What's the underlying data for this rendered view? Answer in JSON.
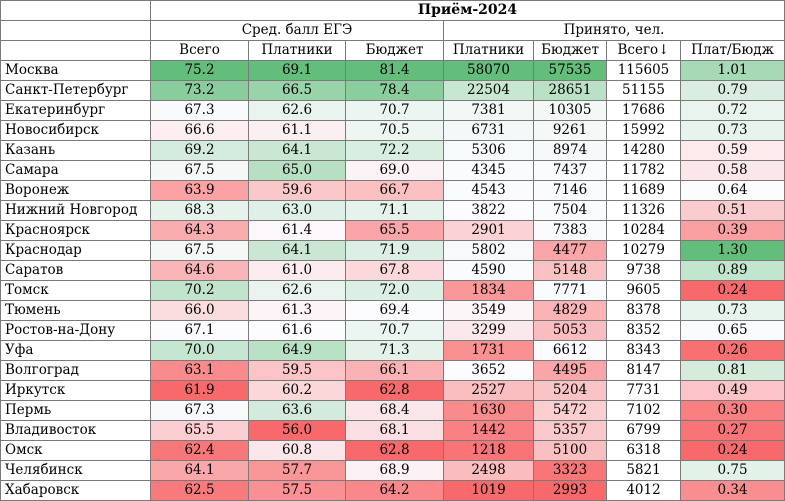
{
  "title": "Приём-2024",
  "groups": {
    "ege": "Сред. балл ЕГЭ",
    "accepted": "Принято, чел."
  },
  "columns": [
    "Всего",
    "Платники",
    "Бюджет",
    "Платники",
    "Бюджет",
    "Всего↓",
    "Плат/Бюдж"
  ],
  "rows": [
    {
      "city": "Москва",
      "v": [
        "75.2",
        "69.1",
        "81.4",
        "58070",
        "57535",
        "115605",
        "1.01"
      ]
    },
    {
      "city": "Санкт-Петербург",
      "v": [
        "73.2",
        "66.5",
        "78.4",
        "22504",
        "28651",
        "51155",
        "0.79"
      ]
    },
    {
      "city": "Екатеринбург",
      "v": [
        "67.3",
        "62.6",
        "70.7",
        "7381",
        "10305",
        "17686",
        "0.72"
      ]
    },
    {
      "city": "Новосибирск",
      "v": [
        "66.6",
        "61.1",
        "70.5",
        "6731",
        "9261",
        "15992",
        "0.73"
      ]
    },
    {
      "city": "Казань",
      "v": [
        "69.2",
        "64.1",
        "72.2",
        "5306",
        "8974",
        "14280",
        "0.59"
      ]
    },
    {
      "city": "Самара",
      "v": [
        "67.5",
        "65.0",
        "69.0",
        "4345",
        "7437",
        "11782",
        "0.58"
      ]
    },
    {
      "city": "Воронеж",
      "v": [
        "63.9",
        "59.6",
        "66.7",
        "4543",
        "7146",
        "11689",
        "0.64"
      ]
    },
    {
      "city": "Нижний Новгород",
      "v": [
        "68.3",
        "63.0",
        "71.1",
        "3822",
        "7504",
        "11326",
        "0.51"
      ]
    },
    {
      "city": "Красноярск",
      "v": [
        "64.3",
        "61.4",
        "65.5",
        "2901",
        "7383",
        "10284",
        "0.39"
      ]
    },
    {
      "city": "Краснодар",
      "v": [
        "67.5",
        "64.1",
        "71.9",
        "5802",
        "4477",
        "10279",
        "1.30"
      ]
    },
    {
      "city": "Саратов",
      "v": [
        "64.6",
        "61.0",
        "67.8",
        "4590",
        "5148",
        "9738",
        "0.89"
      ]
    },
    {
      "city": "Томск",
      "v": [
        "70.2",
        "62.6",
        "72.0",
        "1834",
        "7771",
        "9605",
        "0.24"
      ]
    },
    {
      "city": "Тюмень",
      "v": [
        "66.0",
        "61.3",
        "69.4",
        "3549",
        "4829",
        "8378",
        "0.73"
      ]
    },
    {
      "city": "Ростов-на-Дону",
      "v": [
        "67.1",
        "61.6",
        "70.7",
        "3299",
        "5053",
        "8352",
        "0.65"
      ]
    },
    {
      "city": "Уфа",
      "v": [
        "70.0",
        "64.9",
        "71.3",
        "1731",
        "6612",
        "8343",
        "0.26"
      ]
    },
    {
      "city": "Волгоград",
      "v": [
        "63.1",
        "59.5",
        "66.1",
        "3652",
        "4495",
        "8147",
        "0.81"
      ]
    },
    {
      "city": "Иркутск",
      "v": [
        "61.9",
        "60.2",
        "62.8",
        "2527",
        "5204",
        "7731",
        "0.49"
      ]
    },
    {
      "city": "Пермь",
      "v": [
        "67.3",
        "63.6",
        "68.4",
        "1630",
        "5472",
        "7102",
        "0.30"
      ]
    },
    {
      "city": "Владивосток",
      "v": [
        "65.5",
        "56.0",
        "68.1",
        "1442",
        "5357",
        "6799",
        "0.27"
      ]
    },
    {
      "city": "Омск",
      "v": [
        "62.4",
        "60.8",
        "62.8",
        "1218",
        "5100",
        "6318",
        "0.24"
      ]
    },
    {
      "city": "Челябинск",
      "v": [
        "64.1",
        "57.7",
        "68.9",
        "2498",
        "3323",
        "5821",
        "0.75"
      ]
    },
    {
      "city": "Хабаровск",
      "v": [
        "62.5",
        "57.5",
        "64.2",
        "1019",
        "2993",
        "4012",
        "0.34"
      ]
    }
  ],
  "palette": {
    "low": "#f8696b",
    "mid": "#fcfcff",
    "high": "#63be7b"
  },
  "scale_columns": [
    0,
    1,
    2,
    3,
    4,
    6
  ]
}
